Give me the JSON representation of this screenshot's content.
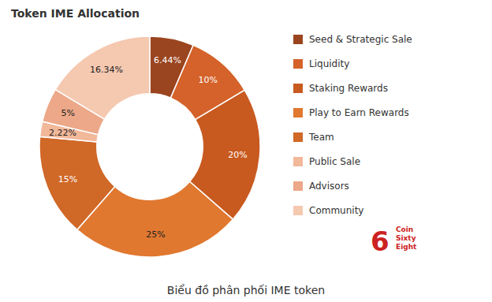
{
  "chart_data": {
    "type": "pie",
    "title": "Token IME Allocation",
    "subtitle": "Biểu đồ phân phối IME token",
    "categories": [
      "Seed & Strategic Sale",
      "Liquidity",
      "Staking Rewards",
      "Play to Earn Rewards",
      "Team",
      "Public Sale",
      "Advisors",
      "Community"
    ],
    "values": [
      6.44,
      10.0,
      20.0,
      25.0,
      15.0,
      2.22,
      5.0,
      16.34
    ],
    "value_labels": [
      "6.44%",
      "10%",
      "20%",
      "25%",
      "15%",
      "2.22%",
      "5%",
      "16.34%"
    ],
    "colors": [
      "#9B4520",
      "#D4622A",
      "#C85A20",
      "#E07830",
      "#D06828",
      "#F2B89A",
      "#ECA888",
      "#F5C8B0"
    ],
    "data_labels": true,
    "legend": "right",
    "annotations": [
      {
        "text": "6",
        "color": "#CC2222"
      },
      {
        "text": "Coin",
        "color": "#CC2222"
      },
      {
        "text": "Sixty",
        "color": "#CC2222"
      },
      {
        "text": "Eight",
        "color": "#CC2222"
      }
    ]
  }
}
